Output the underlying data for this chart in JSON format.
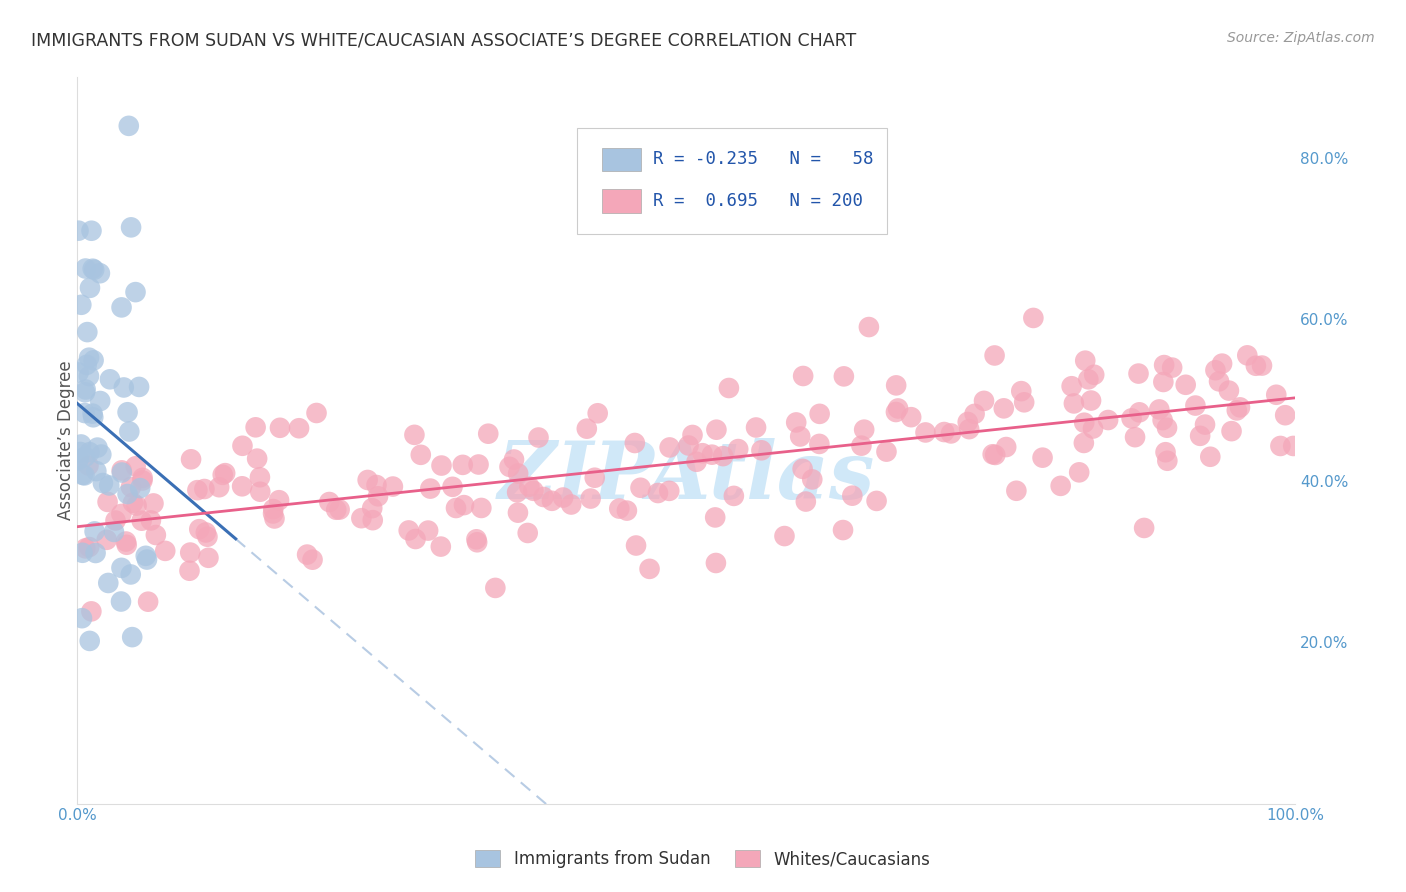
{
  "title": "IMMIGRANTS FROM SUDAN VS WHITE/CAUCASIAN ASSOCIATE’S DEGREE CORRELATION CHART",
  "source": "Source: ZipAtlas.com",
  "ylabel": "Associate’s Degree",
  "ytick_labels": [
    "20.0%",
    "40.0%",
    "60.0%",
    "80.0%"
  ],
  "ytick_values": [
    0.2,
    0.4,
    0.6,
    0.8
  ],
  "xlim": [
    0.0,
    1.0
  ],
  "ylim": [
    0.0,
    0.9
  ],
  "blue_R": -0.235,
  "blue_N": 58,
  "pink_R": 0.695,
  "pink_N": 200,
  "blue_color": "#a8c4e0",
  "pink_color": "#f4a7b9",
  "blue_line_color": "#3a6fb5",
  "pink_line_color": "#e8608a",
  "dashed_line_color": "#b8cce4",
  "watermark_color": "#d0e8f8",
  "legend_labels": [
    "Immigrants from Sudan",
    "Whites/Caucasians"
  ],
  "background_color": "#ffffff",
  "grid_color": "#cccccc",
  "tick_color": "#5599cc",
  "title_color": "#333333",
  "source_color": "#999999",
  "ylabel_color": "#555555"
}
